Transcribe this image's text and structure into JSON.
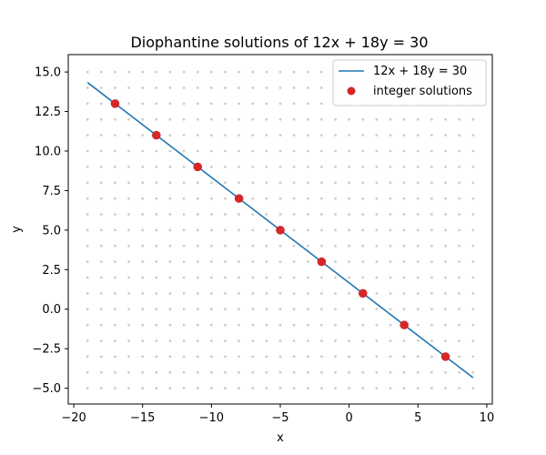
{
  "chart_data": {
    "type": "scatter",
    "title": "Diophantine solutions of 12x + 18y = 30",
    "xlabel": "x",
    "ylabel": "y",
    "xlim": [
      -20.4,
      10.4
    ],
    "ylim": [
      -6.0,
      16.1
    ],
    "xticks": [
      -20,
      -15,
      -10,
      -5,
      0,
      5,
      10
    ],
    "xtick_labels": [
      "−20",
      "−15",
      "−10",
      "−5",
      "0",
      "5",
      "10"
    ],
    "yticks": [
      -5.0,
      -2.5,
      0.0,
      2.5,
      5.0,
      7.5,
      10.0,
      12.5,
      15.0
    ],
    "ytick_labels": [
      "−5.0",
      "−2.5",
      "0.0",
      "2.5",
      "5.0",
      "7.5",
      "10.0",
      "12.5",
      "15.0"
    ],
    "legend_position": "upper right",
    "background_lattice": {
      "x_range": [
        -19,
        9
      ],
      "y_range": [
        -5,
        15
      ],
      "color": "#cccccc"
    },
    "series": [
      {
        "name": "12x + 18y = 30",
        "kind": "line",
        "color": "#1f77b4",
        "x": [
          -19,
          9
        ],
        "y": [
          14.3333,
          -4.3333
        ]
      },
      {
        "name": "integer solutions",
        "kind": "points",
        "color": "#d62728",
        "x": [
          -17,
          -14,
          -11,
          -8,
          -5,
          -2,
          1,
          4,
          7
        ],
        "y": [
          13,
          11,
          9,
          7,
          5,
          3,
          1,
          -1,
          -3
        ]
      }
    ]
  }
}
